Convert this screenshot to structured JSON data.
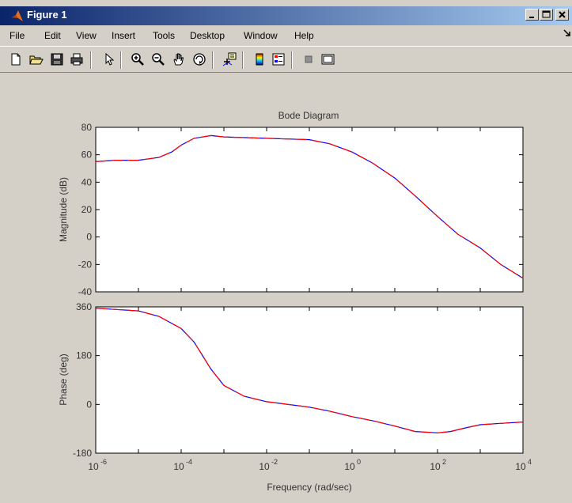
{
  "window": {
    "title": "Figure 1"
  },
  "menu": [
    "File",
    "Edit",
    "View",
    "Insert",
    "Tools",
    "Desktop",
    "Window",
    "Help"
  ],
  "toolbar": {
    "icons": [
      "new-file-icon",
      "open-folder-icon",
      "save-icon",
      "print-icon",
      "arrow-pointer-icon",
      "zoom-in-icon",
      "zoom-out-icon",
      "pan-hand-icon",
      "rotate-3d-icon",
      "data-cursor-icon",
      "colorbar-icon",
      "legend-icon",
      "hide-plot-tools-icon",
      "show-plot-tools-icon"
    ]
  },
  "chart_data": {
    "type": "line",
    "title": "Bode Diagram",
    "xlabel": "Frequency  (rad/sec)",
    "x_scale": "log",
    "xlim": [
      1e-06,
      10000.0
    ],
    "x_ticks": [
      {
        "base": "10",
        "exp": "-6"
      },
      {
        "base": "10",
        "exp": "-4"
      },
      {
        "base": "10",
        "exp": "-2"
      },
      {
        "base": "10",
        "exp": "0"
      },
      {
        "base": "10",
        "exp": "2"
      },
      {
        "base": "10",
        "exp": "4"
      }
    ],
    "series_colors": [
      "#0000ff",
      "#ff0000"
    ],
    "magnitude": {
      "ylabel": "Magnitude (dB)",
      "ylim": [
        -40,
        80
      ],
      "y_ticks": [
        "80",
        "60",
        "40",
        "20",
        "0",
        "-20",
        "-40"
      ],
      "points": [
        [
          1e-06,
          55
        ],
        [
          3e-06,
          56
        ],
        [
          1e-05,
          56
        ],
        [
          3e-05,
          58
        ],
        [
          6e-05,
          62
        ],
        [
          0.0001,
          67
        ],
        [
          0.0002,
          72
        ],
        [
          0.0005,
          74
        ],
        [
          0.001,
          73
        ],
        [
          0.01,
          72
        ],
        [
          0.1,
          71
        ],
        [
          0.3,
          68
        ],
        [
          1,
          62
        ],
        [
          3,
          54
        ],
        [
          10,
          43
        ],
        [
          30,
          30
        ],
        [
          100,
          15
        ],
        [
          300,
          2
        ],
        [
          1000,
          -8
        ],
        [
          3000,
          -20
        ],
        [
          10000,
          -30
        ]
      ]
    },
    "phase": {
      "ylabel": "Phase (deg)",
      "ylim": [
        -180,
        360
      ],
      "y_ticks": [
        "360",
        "180",
        "0",
        "-180"
      ],
      "points": [
        [
          1e-06,
          355
        ],
        [
          1e-05,
          345
        ],
        [
          3e-05,
          325
        ],
        [
          0.0001,
          280
        ],
        [
          0.0002,
          230
        ],
        [
          0.0005,
          130
        ],
        [
          0.001,
          70
        ],
        [
          0.003,
          30
        ],
        [
          0.01,
          10
        ],
        [
          0.1,
          -10
        ],
        [
          0.3,
          -25
        ],
        [
          1,
          -45
        ],
        [
          3,
          -60
        ],
        [
          10,
          -80
        ],
        [
          30,
          -100
        ],
        [
          100,
          -105
        ],
        [
          200,
          -100
        ],
        [
          500,
          -85
        ],
        [
          1000,
          -75
        ],
        [
          3000,
          -70
        ],
        [
          10000,
          -65
        ]
      ]
    }
  }
}
